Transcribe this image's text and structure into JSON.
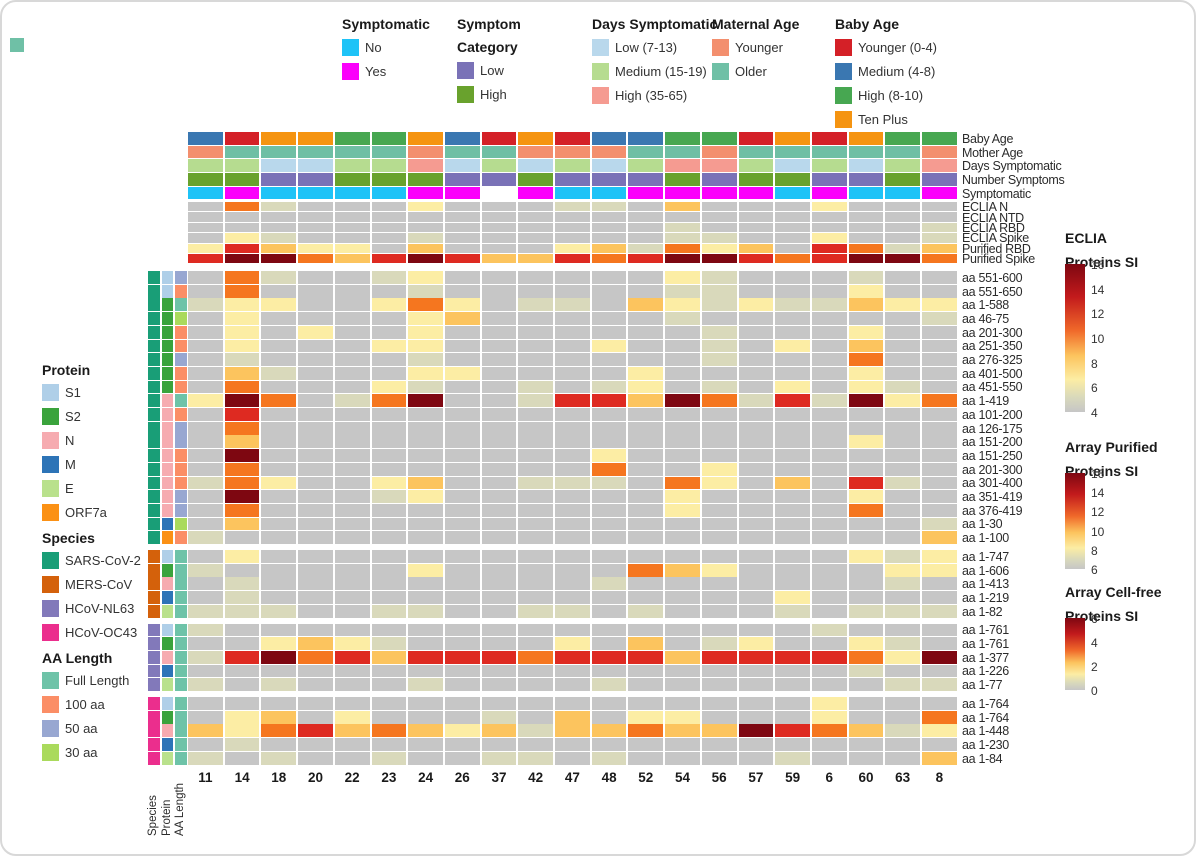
{
  "stray_swatch_color": "#6fc0a6",
  "top_legends": [
    {
      "title_lines": [
        "Symptomatic"
      ],
      "items": [
        {
          "label": "No",
          "color": "#1ec3f7"
        },
        {
          "label": "Yes",
          "color": "#fb00fb"
        }
      ]
    },
    {
      "title_lines": [
        "Symptom",
        "Category"
      ],
      "items": [
        {
          "label": "Low",
          "color": "#7a72b7"
        },
        {
          "label": "High",
          "color": "#69a22d"
        }
      ]
    },
    {
      "title_lines": [
        "Days Symptomatic"
      ],
      "items": [
        {
          "label": "Low (7-13)",
          "color": "#b9d8ec"
        },
        {
          "label": "Medium (15-19)",
          "color": "#b6dc90"
        },
        {
          "label": "High (35-65)",
          "color": "#f59b91"
        }
      ]
    },
    {
      "title_lines": [
        "Maternal Age"
      ],
      "items": [
        {
          "label": "Younger",
          "color": "#f38f6e"
        },
        {
          "label": "Older",
          "color": "#6fc0a6"
        }
      ]
    },
    {
      "title_lines": [
        "Baby Age"
      ],
      "items": [
        {
          "label": "Younger (0-4)",
          "color": "#d42027"
        },
        {
          "label": "Medium (4-8)",
          "color": "#3a77b1"
        },
        {
          "label": "High (8-10)",
          "color": "#47a751"
        },
        {
          "label": "Ten Plus",
          "color": "#f59411"
        }
      ]
    }
  ],
  "side_legends": [
    {
      "title": "Protein",
      "items": [
        {
          "label": "S1",
          "color": "#afcfe8"
        },
        {
          "label": "S2",
          "color": "#3aa33c"
        },
        {
          "label": "N",
          "color": "#f6abb0"
        },
        {
          "label": "M",
          "color": "#2d74b7"
        },
        {
          "label": "E",
          "color": "#b9e18c"
        },
        {
          "label": "ORF7a",
          "color": "#fb9115"
        }
      ]
    },
    {
      "title": "Species",
      "items": [
        {
          "label": "SARS-CoV-2",
          "color": "#199e77"
        },
        {
          "label": "MERS-CoV",
          "color": "#d4610b"
        },
        {
          "label": "HCoV-NL63",
          "color": "#8279ba"
        },
        {
          "label": "HCoV-OC43",
          "color": "#eb2e8d"
        }
      ]
    },
    {
      "title": "AA Length",
      "items": [
        {
          "label": "Full Length",
          "color": "#6ec3a8"
        },
        {
          "label": "100 aa",
          "color": "#fb8e66"
        },
        {
          "label": "50 aa",
          "color": "#98a7d1"
        },
        {
          "label": "30 aa",
          "color": "#aada5c"
        }
      ]
    }
  ],
  "scales": [
    {
      "title_lines": [
        "ECLIA",
        "Proteins SI"
      ],
      "ticks": [
        "16",
        "14",
        "12",
        "10",
        "8",
        "6",
        "4"
      ]
    },
    {
      "title_lines": [
        "Array Purified",
        "Proteins SI"
      ],
      "ticks": [
        "16",
        "14",
        "12",
        "10",
        "8",
        "6"
      ]
    },
    {
      "title_lines": [
        "Array Cell-free",
        "Proteins SI"
      ],
      "ticks": [
        "6",
        "4",
        "2",
        "0"
      ]
    }
  ],
  "bottom_rotated_labels": [
    "Species",
    "Protein",
    "AA Length"
  ],
  "chart_data": {
    "type": "heatmap",
    "columns": [
      "11",
      "14",
      "18",
      "20",
      "22",
      "23",
      "24",
      "26",
      "37",
      "42",
      "47",
      "48",
      "52",
      "54",
      "56",
      "57",
      "59",
      "6",
      "60",
      "63",
      "8"
    ],
    "heat_color_map": {
      "g": "#c6c6c6",
      "k": "#d9d9bb",
      "y": "#fceda4",
      "o": "#fcc45e",
      "O": "#f5761f",
      "r": "#de2a21",
      "R": "#7e0711",
      "w": "#ffffff"
    },
    "annotation_color_map": {
      "B": "#3a77b1",
      "R": "#d42027",
      "G": "#47a751",
      "O": "#f59411",
      "S": "#f38f6e",
      "T": "#6fbfa4",
      "L": "#b9d8ec",
      "M": "#b6dc90",
      "H": "#f59b91",
      "P": "#7a72b7",
      "F": "#69a22d",
      "C": "#1ec3f7",
      "Y": "#fb00fb",
      "W": "#ffffff"
    },
    "annotation_rows": [
      {
        "label": "Baby Age",
        "cells": "BROOGGOBRORBBGGROROGG"
      },
      {
        "label": "Mother Age",
        "cells": "STTTTTSTTSSSTTSTTTTTS"
      },
      {
        "label": "Days Symptomatic",
        "cells": "MMLLMMHLMLMLMHHMLMLMH"
      },
      {
        "label": "Number Symptoms",
        "cells": "FFPPFFFPPFPPPFPFFPPFP"
      },
      {
        "label": "Symptomatic",
        "cells": "CYCCCCYYWYCCYYYYCYCCY"
      }
    ],
    "eclia_rows": [
      {
        "label": "ECLIA N",
        "cells": "gOkgggygggkkgogggyggg"
      },
      {
        "label": "ECLIA NTD",
        "cells": "ggggggggggggggggggggg"
      },
      {
        "label": "ECLIA RBD",
        "cells": "gggggggggggggkggggggk"
      },
      {
        "label": "ECLIA Spike",
        "cells": "gykgggkggggggkkggyggk"
      },
      {
        "label": "Purified RBD",
        "cells": "yroyygogggyokOyogrOko"
      },
      {
        "label": "Purified Spike",
        "cells": "rRROorRroorOrRRrOrRRO"
      }
    ],
    "protein_color_map": {
      "S1": "#afcfe8",
      "S2": "#3aa33c",
      "N": "#f6abb0",
      "M": "#2d74b7",
      "E": "#b9e18c",
      "ORF7a": "#fb9115"
    },
    "aa_color_map": {
      "FL": "#6ec3a8",
      "100": "#fb8e66",
      "50": "#98a7d1",
      "30": "#aada5c"
    },
    "groups": [
      {
        "species": "SARS-CoV-2",
        "species_color": "#199e77",
        "rows": [
          {
            "label": "aa 551-600",
            "protein": "S1",
            "aa": "50",
            "cells": "gOkggkyggggggykgggkgg"
          },
          {
            "label": "aa 551-650",
            "protein": "S1",
            "aa": "100",
            "cells": "gOggggkggggggkkgggygg"
          },
          {
            "label": "aa 1-588",
            "protein": "S2",
            "aa": "FL",
            "cells": "kyyggyOygkkgoykykkoyy"
          },
          {
            "label": "aa 46-75",
            "protein": "S2",
            "aa": "30",
            "cells": "gyggggyogggggkggggggk"
          },
          {
            "label": "aa 201-300",
            "protein": "S2",
            "aa": "100",
            "cells": "gygyggygggggggkgggygg"
          },
          {
            "label": "aa 251-350",
            "protein": "S2",
            "aa": "100",
            "cells": "gygggyyggggyggkgygogg"
          },
          {
            "label": "aa 276-325",
            "protein": "S2",
            "aa": "50",
            "cells": "gkggggkgggggggkgggOgg"
          },
          {
            "label": "aa 401-500",
            "protein": "S2",
            "aa": "100",
            "cells": "gokgggyyggggygggggygg"
          },
          {
            "label": "aa 451-550",
            "protein": "S2",
            "aa": "100",
            "cells": "gOgggykggkgkygkgygykg"
          },
          {
            "label": "aa 1-419",
            "protein": "N",
            "aa": "FL",
            "cells": "yROgkORggkrroROkrkRyO"
          },
          {
            "label": "aa 101-200",
            "protein": "N",
            "aa": "100",
            "cells": "grggggggggggggggggggg"
          },
          {
            "label": "aa 126-175",
            "protein": "N",
            "aa": "50",
            "cells": "gOggggggggggggggggggg"
          },
          {
            "label": "aa 151-200",
            "protein": "N",
            "aa": "50",
            "cells": "goggggggggggggggggygg"
          },
          {
            "label": "aa 151-250",
            "protein": "N",
            "aa": "100",
            "cells": "gRgggggggggyggggggggg"
          },
          {
            "label": "aa 201-300",
            "protein": "N",
            "aa": "100",
            "cells": "gOgggggggggOggygggggg"
          },
          {
            "label": "aa 301-400",
            "protein": "N",
            "aa": "100",
            "cells": "kOyggyoggkkkgOygogrkg"
          },
          {
            "label": "aa 351-419",
            "protein": "N",
            "aa": "50",
            "cells": "gRgggkyggggggyggggygg"
          },
          {
            "label": "aa 376-419",
            "protein": "N",
            "aa": "50",
            "cells": "gOgggggggggggyggggOgg"
          },
          {
            "label": "aa 1-30",
            "protein": "M",
            "aa": "30",
            "cells": "goggggggggggggggggggk"
          },
          {
            "label": "aa 1-100",
            "protein": "ORF7a",
            "aa": "100",
            "cells": "kgggggggggggggggggggo"
          }
        ]
      },
      {
        "species": "MERS-CoV",
        "species_color": "#d4610b",
        "rows": [
          {
            "label": "aa 1-747",
            "protein": "S1",
            "aa": "FL",
            "cells": "gyggggggggggggggggyky"
          },
          {
            "label": "aa 1-606",
            "protein": "S2",
            "aa": "FL",
            "cells": "kgggggygggggOoyggggyy"
          },
          {
            "label": "aa 1-413",
            "protein": "N",
            "aa": "FL",
            "cells": "gkgggggggggkgggggggkg"
          },
          {
            "label": "aa 1-219",
            "protein": "M",
            "aa": "FL",
            "cells": "gkggggggggggggggygggg"
          },
          {
            "label": "aa 1-82",
            "protein": "E",
            "aa": "FL",
            "cells": "kkkggkkggkkgkgggkgkkk"
          }
        ]
      },
      {
        "species": "HCoV-NL63",
        "species_color": "#8279ba",
        "rows": [
          {
            "label": "aa 1-761",
            "protein": "S1",
            "aa": "FL",
            "cells": "kggggggggggggggggkggg"
          },
          {
            "label": "aa 1-761",
            "protein": "S2",
            "aa": "FL",
            "cells": "ggyoykggggygogkyggykg"
          },
          {
            "label": "aa 1-377",
            "protein": "N",
            "aa": "FL",
            "cells": "krROrorrrOrrrorrrrOyR"
          },
          {
            "label": "aa 1-226",
            "protein": "M",
            "aa": "FL",
            "cells": "ggggggggggggggggggkgg"
          },
          {
            "label": "aa 1-77",
            "protein": "E",
            "aa": "FL",
            "cells": "kgkgggkggggkgggggggkk"
          }
        ]
      },
      {
        "species": "HCoV-OC43",
        "species_color": "#eb2e8d",
        "rows": [
          {
            "label": "aa 1-764",
            "protein": "S1",
            "aa": "FL",
            "cells": "gggggggggggggggggyggg"
          },
          {
            "label": "aa 1-764",
            "protein": "S2",
            "aa": "FL",
            "cells": "gyogygggkgogyygggyggO"
          },
          {
            "label": "aa 1-448",
            "protein": "N",
            "aa": "FL",
            "cells": "oyOroOoyokooOooRrOoky"
          },
          {
            "label": "aa 1-230",
            "protein": "M",
            "aa": "FL",
            "cells": "gkggggggggggggggggggg"
          },
          {
            "label": "aa 1-84",
            "protein": "E",
            "aa": "FL",
            "cells": "kgkggkggkkgkggggkgggo"
          }
        ]
      }
    ]
  }
}
